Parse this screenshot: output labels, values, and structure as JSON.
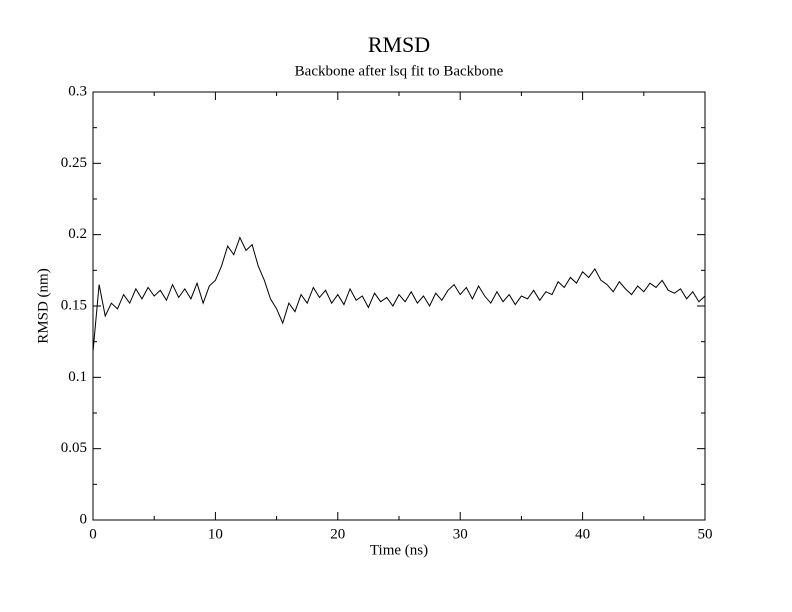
{
  "chart_data": {
    "type": "line",
    "title": "RMSD",
    "subtitle": "Backbone after lsq fit to Backbone",
    "x_label": "Time (ns)",
    "y_label": "RMSD (nm)",
    "x": [
      0,
      0.5,
      1,
      1.5,
      2,
      2.5,
      3,
      3.5,
      4,
      4.5,
      5,
      5.5,
      6,
      6.5,
      7,
      7.5,
      8,
      8.5,
      9,
      9.5,
      10,
      10.5,
      11,
      11.5,
      12,
      12.5,
      13,
      13.5,
      14,
      14.5,
      15,
      15.5,
      16,
      16.5,
      17,
      17.5,
      18,
      18.5,
      19,
      19.5,
      20,
      20.5,
      21,
      21.5,
      22,
      22.5,
      23,
      23.5,
      24,
      24.5,
      25,
      25.5,
      26,
      26.5,
      27,
      27.5,
      28,
      28.5,
      29,
      29.5,
      30,
      30.5,
      31,
      31.5,
      32,
      32.5,
      33,
      33.5,
      34,
      34.5,
      35,
      35.5,
      36,
      36.5,
      37,
      37.5,
      38,
      38.5,
      39,
      39.5,
      40,
      40.5,
      41,
      41.5,
      42,
      42.5,
      43,
      43.5,
      44,
      44.5,
      45,
      45.5,
      46,
      46.5,
      47,
      47.5,
      48,
      48.5,
      49,
      49.5,
      50
    ],
    "values": [
      0.118,
      0.165,
      0.143,
      0.152,
      0.148,
      0.158,
      0.152,
      0.162,
      0.155,
      0.163,
      0.157,
      0.161,
      0.154,
      0.165,
      0.156,
      0.162,
      0.155,
      0.166,
      0.152,
      0.164,
      0.168,
      0.178,
      0.192,
      0.186,
      0.198,
      0.189,
      0.193,
      0.178,
      0.168,
      0.155,
      0.148,
      0.138,
      0.152,
      0.146,
      0.158,
      0.152,
      0.163,
      0.156,
      0.161,
      0.152,
      0.158,
      0.151,
      0.162,
      0.154,
      0.157,
      0.149,
      0.159,
      0.153,
      0.156,
      0.15,
      0.158,
      0.153,
      0.16,
      0.152,
      0.157,
      0.15,
      0.159,
      0.154,
      0.161,
      0.165,
      0.158,
      0.163,
      0.155,
      0.164,
      0.157,
      0.152,
      0.16,
      0.153,
      0.158,
      0.151,
      0.157,
      0.155,
      0.161,
      0.154,
      0.16,
      0.158,
      0.167,
      0.163,
      0.17,
      0.166,
      0.174,
      0.17,
      0.176,
      0.168,
      0.165,
      0.16,
      0.167,
      0.162,
      0.158,
      0.164,
      0.16,
      0.166,
      0.163,
      0.168,
      0.161,
      0.159,
      0.162,
      0.155,
      0.16,
      0.153,
      0.157
    ],
    "color": "#000000",
    "xlim": [
      0,
      50
    ],
    "xticks": [
      0,
      10,
      20,
      30,
      40,
      50
    ],
    "xminorticks": [
      5,
      15,
      25,
      35,
      45
    ],
    "ylim": [
      0,
      0.3
    ],
    "yticks": [
      0,
      0.05,
      0.1,
      0.15,
      0.2,
      0.25,
      0.3
    ],
    "yminorticks": [
      0.025,
      0.075,
      0.125,
      0.175,
      0.225,
      0.275
    ]
  }
}
